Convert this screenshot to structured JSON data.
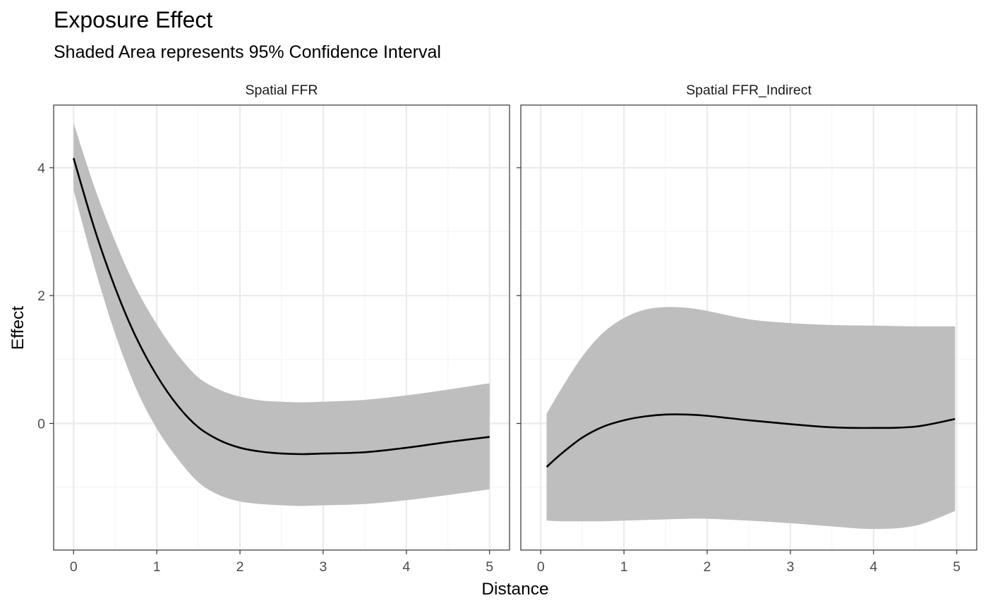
{
  "chart": {
    "title": "Exposure Effect",
    "subtitle": "Shaded Area represents 95% Confidence Interval",
    "xlabel": "Distance",
    "ylabel": "Effect"
  },
  "chart_data": {
    "type": "line",
    "title": "Exposure Effect",
    "subtitle": "Shaded Area represents 95% Confidence Interval",
    "xlabel": "Distance",
    "ylabel": "Effect",
    "xlim": [
      -0.24,
      5.24
    ],
    "ylim": [
      -1.98,
      4.98
    ],
    "x_ticks": [
      0,
      1,
      2,
      3,
      4,
      5
    ],
    "y_ticks": [
      0,
      2,
      4
    ],
    "grid": true,
    "legend": "none",
    "colors": {
      "line": "#000000",
      "ribbon": "#bebebe",
      "grid_major": "#ebebeb",
      "grid_minor": "#f5f5f5",
      "panel_border": "#333333"
    },
    "panels": [
      {
        "name": "Spatial FFR",
        "x": [
          0.0,
          0.25,
          0.5,
          0.75,
          1.0,
          1.25,
          1.5,
          1.75,
          2.0,
          2.25,
          2.5,
          2.75,
          3.0,
          3.5,
          4.0,
          4.5,
          5.0
        ],
        "effect": [
          4.15,
          3.05,
          2.12,
          1.35,
          0.75,
          0.28,
          -0.06,
          -0.26,
          -0.38,
          -0.44,
          -0.47,
          -0.48,
          -0.47,
          -0.45,
          -0.38,
          -0.29,
          -0.21
        ],
        "lower": [
          3.65,
          2.45,
          1.4,
          0.55,
          -0.08,
          -0.55,
          -0.92,
          -1.12,
          -1.22,
          -1.26,
          -1.28,
          -1.29,
          -1.28,
          -1.26,
          -1.2,
          -1.12,
          -1.03
        ],
        "upper": [
          4.7,
          3.7,
          2.85,
          2.12,
          1.55,
          1.08,
          0.72,
          0.53,
          0.42,
          0.36,
          0.34,
          0.33,
          0.34,
          0.37,
          0.44,
          0.53,
          0.63
        ]
      },
      {
        "name": "Spatial FFR_Indirect",
        "x": [
          0.07,
          0.25,
          0.5,
          0.75,
          1.0,
          1.25,
          1.5,
          1.75,
          2.0,
          2.5,
          3.0,
          3.5,
          4.0,
          4.5,
          4.98
        ],
        "effect": [
          -0.68,
          -0.47,
          -0.22,
          -0.05,
          0.05,
          0.11,
          0.14,
          0.14,
          0.12,
          0.05,
          -0.01,
          -0.06,
          -0.07,
          -0.05,
          0.07
        ],
        "lower": [
          -1.52,
          -1.53,
          -1.53,
          -1.53,
          -1.52,
          -1.51,
          -1.5,
          -1.49,
          -1.49,
          -1.52,
          -1.56,
          -1.61,
          -1.65,
          -1.6,
          -1.37
        ],
        "upper": [
          0.15,
          0.55,
          1.05,
          1.42,
          1.65,
          1.78,
          1.82,
          1.81,
          1.76,
          1.63,
          1.57,
          1.54,
          1.53,
          1.52,
          1.52
        ]
      }
    ]
  }
}
